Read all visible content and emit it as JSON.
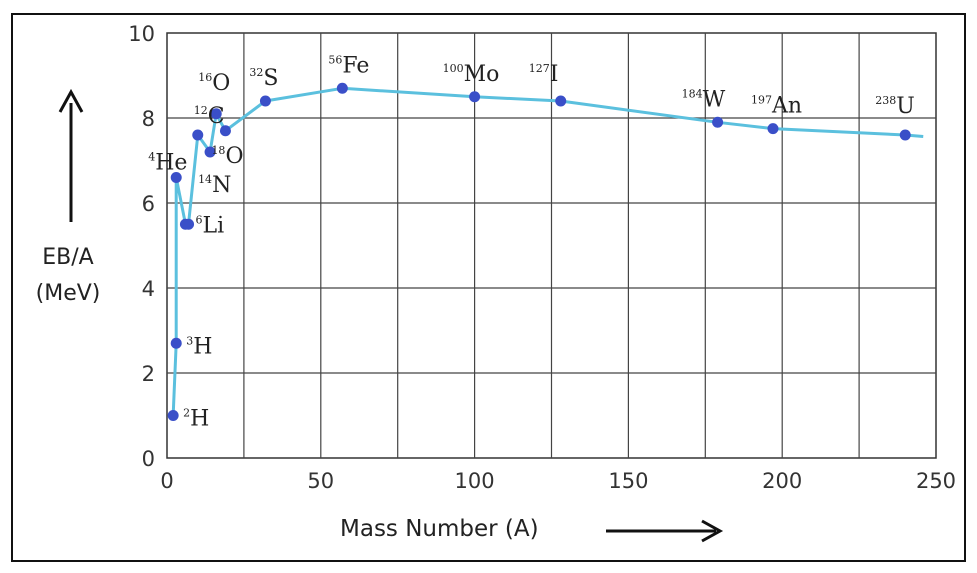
{
  "chart_data": {
    "type": "line",
    "title": "",
    "xlabel": "Mass Number (A)",
    "ylabel_line1": "EB/A",
    "ylabel_line2": "(MeV)",
    "xlim": [
      0,
      250
    ],
    "ylim": [
      0,
      10
    ],
    "xticks": [
      0,
      50,
      100,
      150,
      200,
      250
    ],
    "yticks": [
      0,
      2,
      4,
      6,
      8,
      10
    ],
    "grid": true,
    "line_color": "#5bc0de",
    "marker_color": "#3a4fc8",
    "series": [
      {
        "name": "",
        "points": [
          {
            "x": 2,
            "y": 1.0,
            "mass": "2",
            "symbol": "H"
          },
          {
            "x": 3,
            "y": 2.7,
            "mass": "3",
            "symbol": "H"
          },
          {
            "x": 3,
            "y": 6.6,
            "mass": "4",
            "symbol": "He"
          },
          {
            "x": 6,
            "y": 5.5,
            "mass": "6",
            "symbol": "Li"
          },
          {
            "x": 7,
            "y": 5.5,
            "mass": "",
            "symbol": ""
          },
          {
            "x": 10,
            "y": 7.6,
            "mass": "12",
            "symbol": "C"
          },
          {
            "x": 14,
            "y": 7.2,
            "mass": "14",
            "symbol": "N"
          },
          {
            "x": 16,
            "y": 8.1,
            "mass": "16",
            "symbol": "O"
          },
          {
            "x": 19,
            "y": 7.7,
            "mass": "18",
            "symbol": "O"
          },
          {
            "x": 32,
            "y": 8.4,
            "mass": "32",
            "symbol": "S"
          },
          {
            "x": 57,
            "y": 8.7,
            "mass": "56",
            "symbol": "Fe"
          },
          {
            "x": 100,
            "y": 8.5,
            "mass": "100",
            "symbol": "Mo"
          },
          {
            "x": 128,
            "y": 8.4,
            "mass": "127",
            "symbol": "I"
          },
          {
            "x": 179,
            "y": 7.9,
            "mass": "184",
            "symbol": "W"
          },
          {
            "x": 197,
            "y": 7.75,
            "mass": "197",
            "symbol": "An"
          },
          {
            "x": 240,
            "y": 7.6,
            "mass": "238",
            "symbol": "U"
          }
        ]
      }
    ]
  }
}
